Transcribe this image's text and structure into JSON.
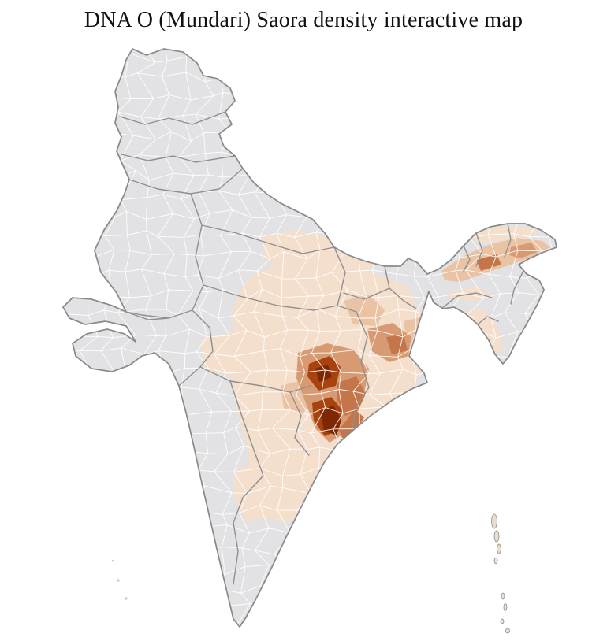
{
  "page": {
    "title": "DNA O (Mundari) Saora density interactive map"
  },
  "map": {
    "region_label": "India district-level choropleth of DNA O (Mundari) Saora density",
    "background": "#ffffff",
    "no_data_fill": "#e2e2e4",
    "outline_color": "#8a8a8a",
    "state_border_color": "#8f8f8f",
    "district_line_color": "#ffffff",
    "density_palette": {
      "l1": "#f4decc",
      "l2": "#eac3a4",
      "l3": "#d89a72",
      "l4": "#c4764a",
      "l5": "#a8430f",
      "l6": "#7f2704"
    },
    "special_fills": {
      "dark_gray_district": "#7c7c80",
      "island": "#e9ddce",
      "small_island_dot": "#c9c9c9"
    },
    "region_fills": {
      "east_central_belt": "#f4decc",
      "up_bihar_patch": "#f4decc",
      "maharashtra_west_patch": "#f4decc",
      "south_interior_patch": "#f4decc",
      "arunachal_strip": "#f4decc",
      "meghalaya_patch": "#f4decc",
      "tripura_mizoram_patch": "#f4decc",
      "assam_valley": "#eac3a4",
      "wb_north_patch": "#eac3a4",
      "bihar_jharkhand_patch": "#eac3a4",
      "telangana_east_patch": "#eac3a4",
      "assam_upper_medium": "#d89a72",
      "jharkhand_wb_medium": "#d89a72",
      "chhattisgarh_odisha_core": "#d89a72",
      "assam_dark_district": "#c4764a",
      "jharkhand_wb_dark_spot": "#c4764a",
      "odisha_east_medium": "#c4764a",
      "odisha_coast_strip": "#c4764a",
      "core_dark_upper": "#a8430f",
      "core_dark_lower": "#a8430f",
      "core_darkest_upper": "#7f2704",
      "core_darkest_coastal": "#7f2704",
      "wb_delta_dark_gray": "#7c7c80"
    }
  }
}
